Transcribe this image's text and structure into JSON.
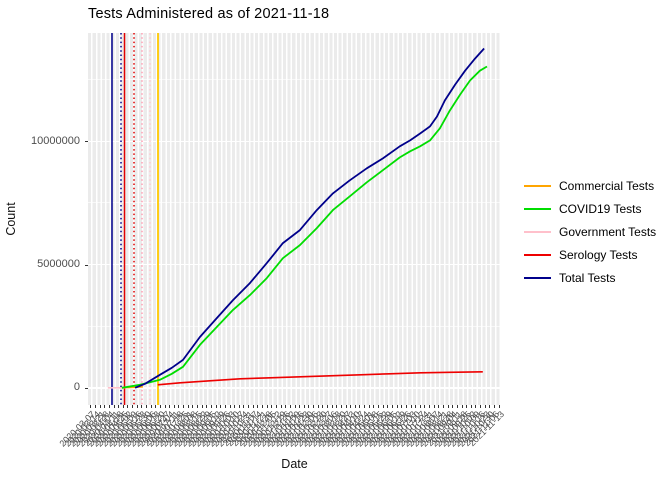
{
  "title": "Tests Administered as of 2021-11-18",
  "axes": {
    "x_title": "Date",
    "y_title": "Count",
    "y_ticks": [
      {
        "label": "0",
        "value": 0
      },
      {
        "label": "5000000",
        "value": 5000000
      },
      {
        "label": "10000000",
        "value": 10000000
      }
    ],
    "y_minor": [
      2500000,
      7500000,
      12500000
    ],
    "x_tick_dates": {
      "start": "2020-03-07",
      "count": 89,
      "step_days": 7,
      "format": "YYYY-MM-DD",
      "angle_deg": 45
    }
  },
  "colors": {
    "panel_bg": "#EBEBEB",
    "grid": "#FFFFFF",
    "tick_text": "#4D4D4D",
    "title_text": "#000000"
  },
  "chart_data": {
    "type": "line",
    "title": "Tests Administered as of 2021-11-18",
    "xlabel": "Date",
    "ylabel": "Count",
    "x_range": {
      "start": "2020-03-07",
      "end": "2021-11-13",
      "unit": "category-week"
    },
    "ylim": [
      0,
      14400000
    ],
    "y_render_range": [
      -700000,
      14400000
    ],
    "yticks": [
      0,
      5000000,
      10000000
    ],
    "grid": "on",
    "legend_position": "right",
    "draw_order": [
      2,
      0,
      3,
      1,
      4
    ],
    "series": [
      {
        "name": "Commercial Tests",
        "color": "#FFA500",
        "width": 1.6,
        "points": [
          {
            "t": 0.082,
            "v": 0
          },
          {
            "t": 0.107,
            "v": 20000
          },
          {
            "t": 0.133,
            "v": 40000
          }
        ]
      },
      {
        "name": "COVID19 Tests",
        "color": "#00DD00",
        "width": 1.8,
        "points": [
          {
            "t": 0.082,
            "v": 0
          },
          {
            "t": 0.126,
            "v": 120000
          },
          {
            "t": 0.174,
            "v": 324000
          },
          {
            "t": 0.203,
            "v": 567000
          },
          {
            "t": 0.23,
            "v": 850000
          },
          {
            "t": 0.271,
            "v": 1740000
          },
          {
            "t": 0.312,
            "v": 2470000
          },
          {
            "t": 0.351,
            "v": 3160000
          },
          {
            "t": 0.392,
            "v": 3760000
          },
          {
            "t": 0.433,
            "v": 4450000
          },
          {
            "t": 0.472,
            "v": 5260000
          },
          {
            "t": 0.513,
            "v": 5790000
          },
          {
            "t": 0.554,
            "v": 6480000
          },
          {
            "t": 0.593,
            "v": 7210000
          },
          {
            "t": 0.634,
            "v": 7770000
          },
          {
            "t": 0.675,
            "v": 8340000
          },
          {
            "t": 0.714,
            "v": 8830000
          },
          {
            "t": 0.755,
            "v": 9350000
          },
          {
            "t": 0.78,
            "v": 9600000
          },
          {
            "t": 0.804,
            "v": 9800000
          },
          {
            "t": 0.828,
            "v": 10040000
          },
          {
            "t": 0.852,
            "v": 10530000
          },
          {
            "t": 0.876,
            "v": 11250000
          },
          {
            "t": 0.901,
            "v": 11900000
          },
          {
            "t": 0.925,
            "v": 12470000
          },
          {
            "t": 0.949,
            "v": 12870000
          },
          {
            "t": 0.966,
            "v": 13040000
          }
        ]
      },
      {
        "name": "Government Tests",
        "color": "#FFC0CB",
        "width": 1.6,
        "points": [
          {
            "t": 0.048,
            "v": 0
          },
          {
            "t": 0.09,
            "v": 0
          }
        ]
      },
      {
        "name": "Serology Tests",
        "color": "#EE0000",
        "width": 1.6,
        "points": [
          {
            "t": 0.169,
            "v": 121000
          },
          {
            "t": 0.223,
            "v": 202000
          },
          {
            "t": 0.295,
            "v": 283000
          },
          {
            "t": 0.368,
            "v": 364000
          },
          {
            "t": 0.441,
            "v": 405000
          },
          {
            "t": 0.513,
            "v": 445000
          },
          {
            "t": 0.586,
            "v": 486000
          },
          {
            "t": 0.659,
            "v": 526000
          },
          {
            "t": 0.731,
            "v": 567000
          },
          {
            "t": 0.804,
            "v": 607000
          },
          {
            "t": 0.876,
            "v": 627000
          },
          {
            "t": 0.956,
            "v": 648000
          }
        ]
      },
      {
        "name": "Total Tests",
        "color": "#00008B",
        "width": 1.8,
        "points": [
          {
            "t": 0.114,
            "v": 0
          },
          {
            "t": 0.138,
            "v": 162000
          },
          {
            "t": 0.174,
            "v": 526000
          },
          {
            "t": 0.203,
            "v": 810000
          },
          {
            "t": 0.23,
            "v": 1130000
          },
          {
            "t": 0.271,
            "v": 2060000
          },
          {
            "t": 0.312,
            "v": 2830000
          },
          {
            "t": 0.351,
            "v": 3560000
          },
          {
            "t": 0.392,
            "v": 4250000
          },
          {
            "t": 0.433,
            "v": 5060000
          },
          {
            "t": 0.472,
            "v": 5870000
          },
          {
            "t": 0.513,
            "v": 6400000
          },
          {
            "t": 0.554,
            "v": 7210000
          },
          {
            "t": 0.593,
            "v": 7890000
          },
          {
            "t": 0.634,
            "v": 8420000
          },
          {
            "t": 0.675,
            "v": 8910000
          },
          {
            "t": 0.714,
            "v": 9310000
          },
          {
            "t": 0.755,
            "v": 9800000
          },
          {
            "t": 0.78,
            "v": 10040000
          },
          {
            "t": 0.804,
            "v": 10320000
          },
          {
            "t": 0.828,
            "v": 10610000
          },
          {
            "t": 0.845,
            "v": 11010000
          },
          {
            "t": 0.864,
            "v": 11660000
          },
          {
            "t": 0.889,
            "v": 12310000
          },
          {
            "t": 0.913,
            "v": 12870000
          },
          {
            "t": 0.937,
            "v": 13360000
          },
          {
            "t": 0.959,
            "v": 13770000
          }
        ]
      }
    ],
    "vlines": [
      {
        "t": 0.0581,
        "color": "#00008B",
        "style": "solid",
        "width": 1.5
      },
      {
        "t": 0.0799,
        "color": "#00008B",
        "style": "dotted",
        "width": 1.5
      },
      {
        "t": 0.0884,
        "color": "#E00000",
        "style": "solid",
        "width": 1.5
      },
      {
        "t": 0.1114,
        "color": "#E00000",
        "style": "dotted",
        "width": 1.5
      },
      {
        "t": 0.1308,
        "color": "#FF9FB3",
        "style": "dotted",
        "width": 1.5
      },
      {
        "t": 0.1501,
        "color": "#FFC9D2",
        "style": "dotted",
        "width": 1.5
      },
      {
        "t": 0.1695,
        "color": "#FFC800",
        "style": "solid",
        "width": 1.8
      }
    ]
  }
}
